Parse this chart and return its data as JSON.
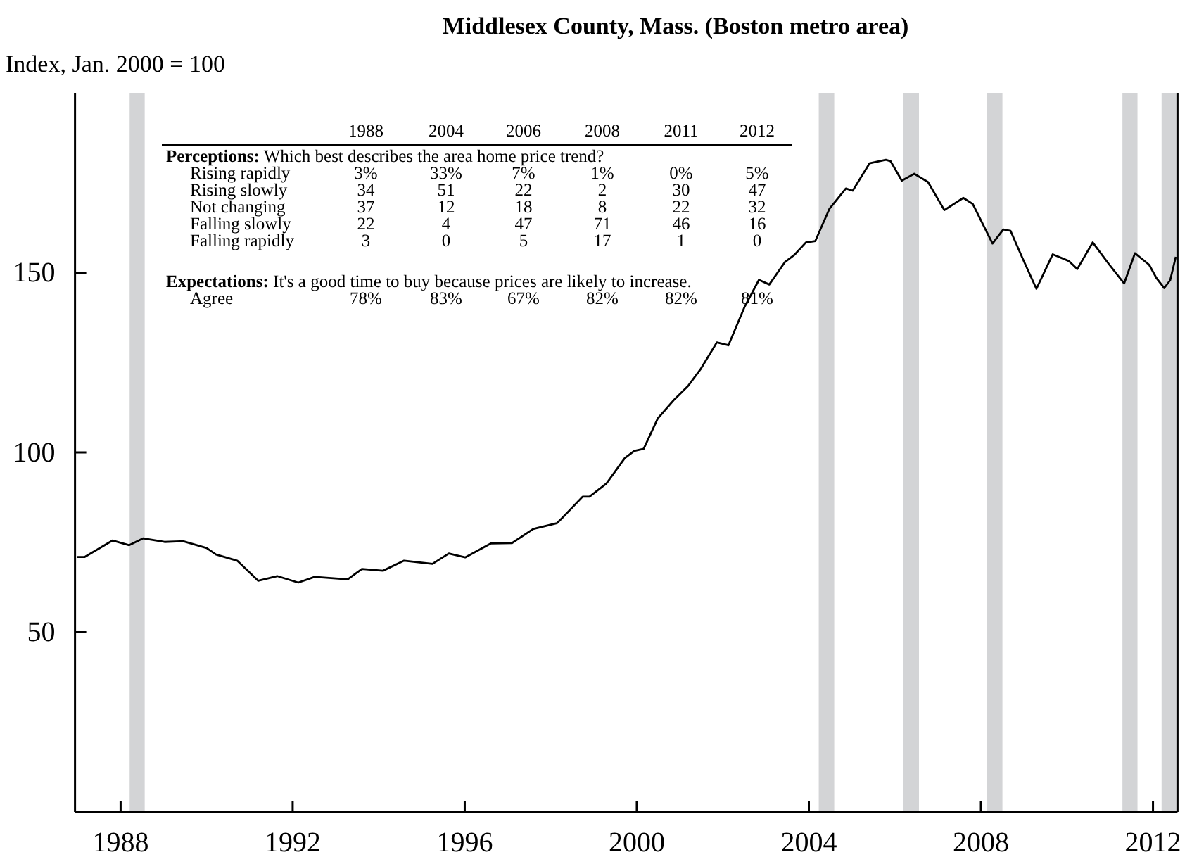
{
  "chart_data": {
    "type": "line",
    "title": "Middlesex County, Mass. (Boston metro area)",
    "ylabel": "Index, Jan. 2000 = 100",
    "x": [
      1986.99,
      1987.16,
      1987.81,
      1988.2,
      1988.52,
      1989.02,
      1989.45,
      1990.0,
      1990.22,
      1990.71,
      1991.2,
      1991.64,
      1992.13,
      1992.51,
      1993.28,
      1993.61,
      1994.1,
      1994.59,
      1995.25,
      1995.63,
      1996.01,
      1996.61,
      1997.1,
      1997.59,
      1998.14,
      1998.3,
      1998.74,
      1998.9,
      1999.29,
      1999.72,
      1999.94,
      2000.16,
      2000.49,
      2000.87,
      2001.2,
      2001.48,
      2001.86,
      2002.13,
      2002.51,
      2002.84,
      2003.08,
      2003.44,
      2003.66,
      2003.93,
      2004.15,
      2004.48,
      2004.86,
      2005.02,
      2005.41,
      2005.79,
      2005.9,
      2006.16,
      2006.45,
      2006.77,
      2007.15,
      2007.59,
      2007.81,
      2008.27,
      2008.52,
      2008.69,
      2008.96,
      2009.29,
      2009.67,
      2010.05,
      2010.24,
      2010.6,
      2010.98,
      2011.33,
      2011.58,
      2011.91,
      2012.08,
      2012.26,
      2012.4,
      2012.53
    ],
    "series": [
      {
        "color": "#000000",
        "values": [
          70.9,
          70.9,
          75.5,
          74.2,
          76.1,
          75.1,
          75.3,
          73.4,
          71.6,
          69.9,
          64.3,
          65.6,
          63.8,
          65.4,
          64.7,
          67.6,
          67.1,
          69.9,
          69.0,
          71.9,
          70.8,
          74.7,
          74.8,
          78.7,
          80.3,
          82.2,
          87.7,
          87.7,
          91.3,
          98.4,
          100.4,
          101.0,
          109.5,
          114.7,
          118.6,
          123.1,
          130.6,
          129.8,
          140.6,
          148.0,
          146.7,
          152.9,
          154.9,
          158.4,
          158.8,
          167.8,
          173.4,
          172.8,
          180.4,
          181.4,
          181.0,
          175.6,
          177.5,
          175.2,
          167.4,
          170.8,
          169.1,
          158.1,
          162.0,
          161.6,
          154.2,
          145.5,
          155.1,
          153.2,
          151.0,
          158.4,
          152.3,
          147.0,
          155.4,
          152.2,
          148.5,
          145.7,
          147.9,
          154.4
        ]
      }
    ],
    "xlim": [
      1986.94,
      2012.57
    ],
    "xticks": [
      1988,
      1992,
      1996,
      2000,
      2004,
      2008,
      2012
    ],
    "ylim": [
      0,
      200
    ],
    "yticks": [
      50,
      100,
      150
    ],
    "grid": false,
    "line_style": "solid",
    "marker": "none",
    "bands": [
      {
        "axis": "x",
        "from": 1988.21,
        "to": 1988.56,
        "color": "#d3d4d6"
      },
      {
        "axis": "x",
        "from": 2004.23,
        "to": 2004.59,
        "color": "#d3d4d6"
      },
      {
        "axis": "x",
        "from": 2006.2,
        "to": 2006.56,
        "color": "#d3d4d6"
      },
      {
        "axis": "x",
        "from": 2008.14,
        "to": 2008.5,
        "color": "#d3d4d6"
      },
      {
        "axis": "x",
        "from": 2011.29,
        "to": 2011.64,
        "color": "#d3d4d6"
      },
      {
        "axis": "x",
        "from": 2012.2,
        "to": 2012.56,
        "color": "#d3d4d6"
      }
    ],
    "annotations": [
      "\t1988\t2004\t2006\t2008\t2011\t2012",
      "Perceptions: Which best describes the area home price trend?",
      "Rising rapidly\t3%\t33%\t7%\t1%\t0%\t5%",
      "Rising slowly\t34\t51\t22\t2\t30\t47",
      "Not changing\t37\t12\t18\t8\t22\t32",
      "Falling slowly\t22\t4\t47\t71\t46\t16",
      "Falling rapidly\t3\t0\t5\t17\t1\t0",
      "Expectations: It's a good time to buy because prices are likely to increase.",
      "Agree\t78%\t83%\t67%\t82%\t82%\t81%"
    ]
  }
}
